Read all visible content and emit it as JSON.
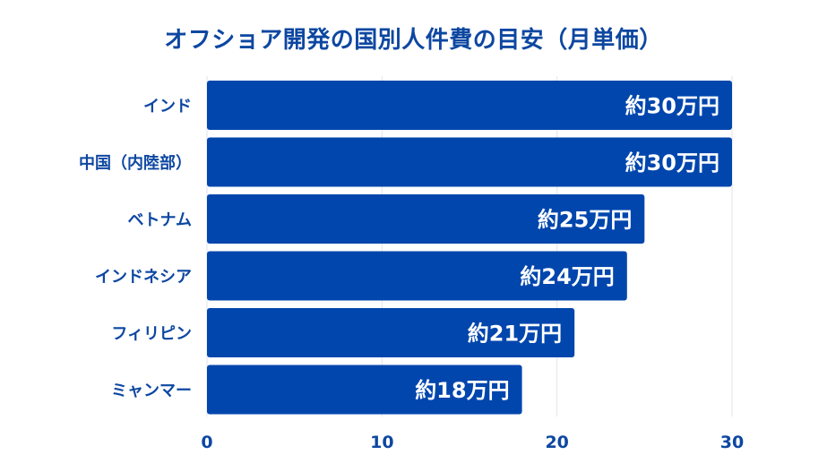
{
  "chart_data": {
    "type": "bar",
    "orientation": "horizontal",
    "title": "オフショア開発の国別人件費の目安（月単価）",
    "categories": [
      "インド",
      "中国（内陸部）",
      "ベトナム",
      "インドネシア",
      "フィリピン",
      "ミャンマー"
    ],
    "values": [
      30,
      30,
      25,
      24,
      21,
      18
    ],
    "data_labels": [
      "約30万円",
      "約30万円",
      "約25万円",
      "約24万円",
      "約21万円",
      "約18万円"
    ],
    "xlim": [
      0,
      30
    ],
    "x_ticks": [
      "0",
      "10",
      "20",
      "30"
    ],
    "xlabel": "",
    "ylabel": "",
    "grid": true,
    "colors": {
      "bar": "#0046ad",
      "text": "#0d47a1",
      "grid": "#dfe3ea"
    }
  }
}
